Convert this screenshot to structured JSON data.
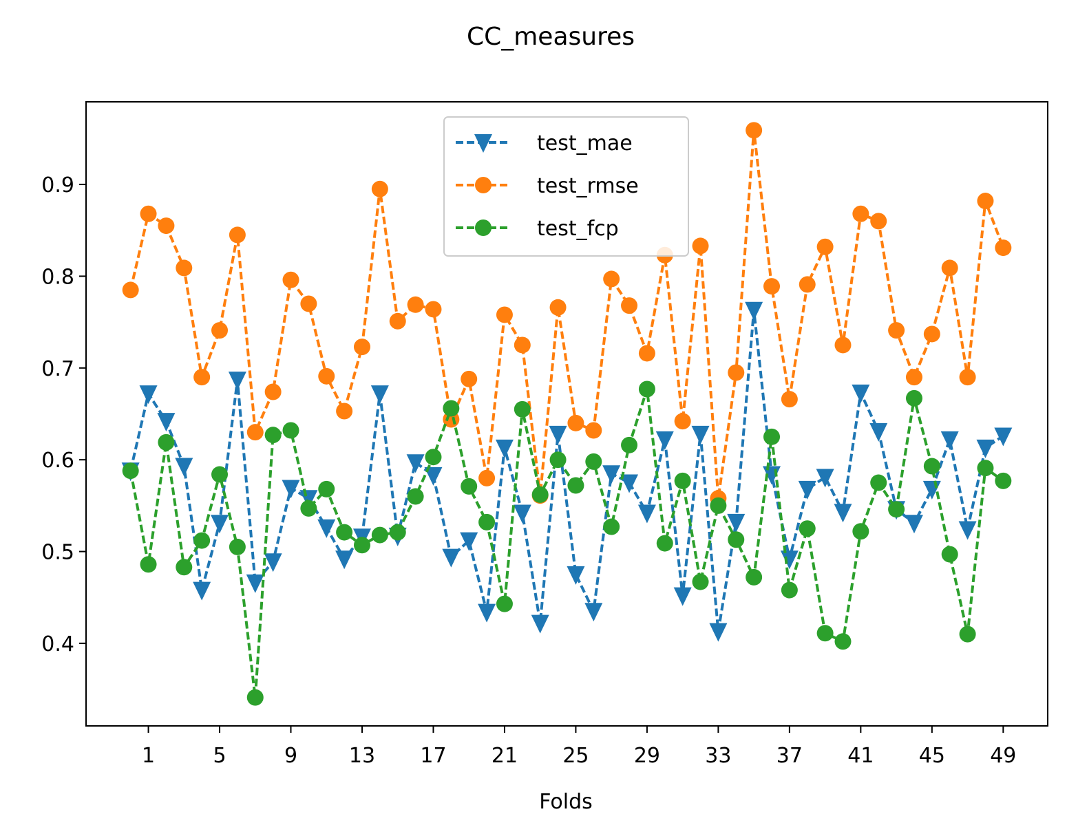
{
  "chart_data": {
    "type": "line",
    "title": "CC_measures",
    "xlabel": "Folds",
    "ylabel": "",
    "x_tick_labels": [
      "1",
      "5",
      "9",
      "13",
      "17",
      "21",
      "25",
      "29",
      "33",
      "37",
      "41",
      "45",
      "49"
    ],
    "x_tick_values": [
      1,
      5,
      9,
      13,
      17,
      21,
      25,
      29,
      33,
      37,
      41,
      45,
      49
    ],
    "y_tick_labels": [
      "0.4",
      "0.5",
      "0.6",
      "0.7",
      "0.8",
      "0.9"
    ],
    "y_tick_values": [
      0.4,
      0.5,
      0.6,
      0.7,
      0.8,
      0.9
    ],
    "xlim": [
      -2.5,
      51.5
    ],
    "ylim": [
      0.31,
      0.99
    ],
    "legend_position": "upper center",
    "grid": false,
    "x": [
      0,
      1,
      2,
      3,
      4,
      5,
      6,
      7,
      8,
      9,
      10,
      11,
      12,
      13,
      14,
      15,
      16,
      17,
      18,
      19,
      20,
      21,
      22,
      23,
      24,
      25,
      26,
      27,
      28,
      29,
      30,
      31,
      32,
      33,
      34,
      35,
      36,
      37,
      38,
      39,
      40,
      41,
      42,
      43,
      44,
      45,
      46,
      47,
      48,
      49
    ],
    "series": [
      {
        "name": "test_mae",
        "color": "#1f77b4",
        "marker": "triangle-down",
        "values": [
          0.588,
          0.672,
          0.642,
          0.593,
          0.458,
          0.531,
          0.687,
          0.466,
          0.489,
          0.569,
          0.558,
          0.526,
          0.492,
          0.516,
          0.672,
          0.517,
          0.597,
          0.583,
          0.494,
          0.512,
          0.434,
          0.613,
          0.542,
          0.422,
          0.628,
          0.475,
          0.435,
          0.585,
          0.575,
          0.542,
          0.622,
          0.452,
          0.628,
          0.413,
          0.532,
          0.763,
          0.584,
          0.492,
          0.568,
          0.581,
          0.543,
          0.673,
          0.631,
          0.546,
          0.531,
          0.568,
          0.622,
          0.524,
          0.613,
          0.626
        ]
      },
      {
        "name": "test_rmse",
        "color": "#ff7f0e",
        "marker": "circle",
        "values": [
          0.785,
          0.868,
          0.855,
          0.809,
          0.69,
          0.741,
          0.845,
          0.63,
          0.674,
          0.796,
          0.77,
          0.691,
          0.653,
          0.723,
          0.895,
          0.751,
          0.769,
          0.764,
          0.644,
          0.688,
          0.58,
          0.758,
          0.725,
          0.561,
          0.766,
          0.64,
          0.632,
          0.797,
          0.768,
          0.716,
          0.823,
          0.642,
          0.833,
          0.558,
          0.695,
          0.959,
          0.789,
          0.666,
          0.791,
          0.832,
          0.725,
          0.868,
          0.86,
          0.741,
          0.69,
          0.737,
          0.809,
          0.69,
          0.882,
          0.831
        ]
      },
      {
        "name": "test_fcp",
        "color": "#2ca02c",
        "marker": "circle",
        "values": [
          0.588,
          0.486,
          0.619,
          0.483,
          0.512,
          0.584,
          0.505,
          0.341,
          0.627,
          0.632,
          0.547,
          0.568,
          0.521,
          0.507,
          0.518,
          0.521,
          0.56,
          0.603,
          0.656,
          0.571,
          0.532,
          0.443,
          0.655,
          0.562,
          0.6,
          0.572,
          0.598,
          0.527,
          0.616,
          0.677,
          0.509,
          0.577,
          0.467,
          0.55,
          0.513,
          0.472,
          0.625,
          0.458,
          0.525,
          0.411,
          0.402,
          0.522,
          0.575,
          0.546,
          0.667,
          0.593,
          0.497,
          0.41,
          0.591,
          0.577
        ]
      }
    ]
  }
}
